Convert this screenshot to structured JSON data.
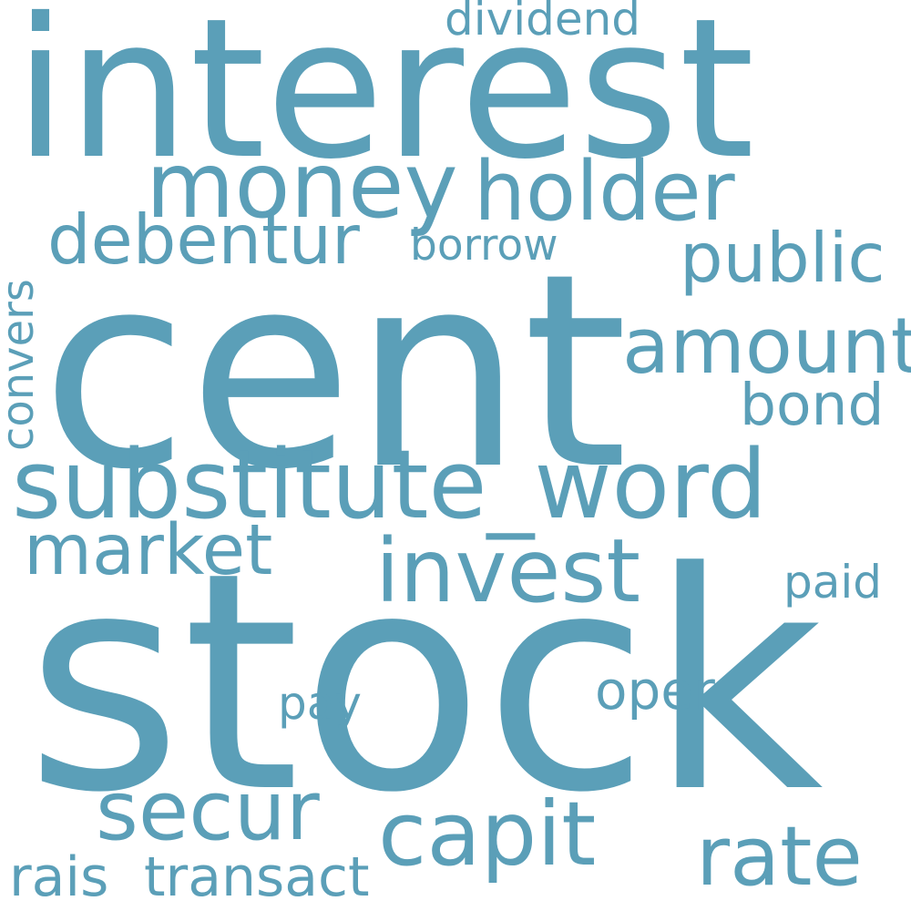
{
  "colors": {
    "background": "#ffffff",
    "word": "#5b9fb8"
  },
  "words": {
    "stock": "stock",
    "cent": "cent",
    "interest": "interest",
    "substitute_word": "substitute_word",
    "money": "money",
    "holder": "holder",
    "invest": "invest",
    "capit": "capit",
    "secur": "secur",
    "amount": "amount",
    "market": "market",
    "rate": "rate",
    "debentur": "debentur",
    "public": "public",
    "bond": "bond",
    "oper": "oper",
    "transact": "transact",
    "rais": "rais",
    "dividend": "dividend",
    "borrow": "borrow",
    "convers": "convers",
    "paid": "paid",
    "pay": "pay"
  }
}
